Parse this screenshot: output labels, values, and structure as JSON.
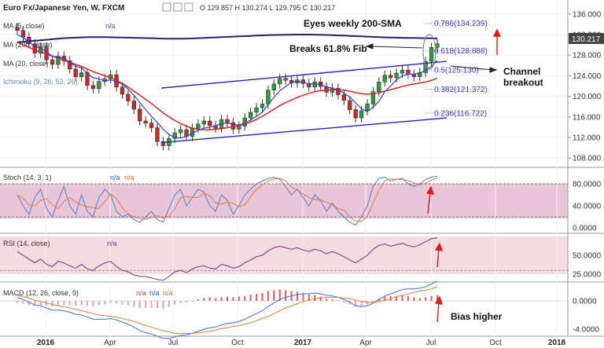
{
  "header": {
    "symbol": "Euro Fx/Japanese Yen, W, FXCM",
    "ohlc": "O 129.857  H 130.274  L 129.795  C 130.217"
  },
  "indicators": {
    "ma5": "MA (5, close)",
    "ma200": "MA (200, close)",
    "ma20": "MA (20, close)",
    "ichimoku": "Ichimoku (9, 26, 52, 26)",
    "na": "n/a"
  },
  "annotations": {
    "sma": "Eyes weekly 200-SMA",
    "fib": "Breaks 61.8% Fib",
    "channel1": "Channel",
    "channel2": "breakout",
    "bias": "Bias higher"
  },
  "price_tag": "130.217",
  "fib_levels": [
    {
      "label": "0.786(134.239)",
      "value": 134.239
    },
    {
      "label": "0.618(128.888)",
      "value": 128.888
    },
    {
      "label": "0.5(125.130)",
      "value": 125.13
    },
    {
      "label": "0.382(121.372)",
      "value": 121.372
    },
    {
      "label": "0.236(116.722)",
      "value": 116.722
    }
  ],
  "panes": {
    "stoch": {
      "title": "Stoch (14, 3, 1)",
      "na": "n/a",
      "na2": "n/a",
      "ticks": [
        "80.0000",
        "40.0000",
        "0.0000"
      ]
    },
    "rsi": {
      "title": "RSI (14, close)",
      "na": "n/a",
      "ticks": [
        "50.0000",
        "25.0000"
      ]
    },
    "macd": {
      "title": "MACD (12, 26, close, 9)",
      "na": "n/a",
      "na2": "n/a",
      "na3": "n/a",
      "ticks": [
        "0.0000",
        "-4.0000"
      ]
    }
  },
  "chart_data": {
    "type": "line",
    "title": "Euro Fx/Japanese Yen, W, FXCM",
    "ylim": [
      106.5,
      137.5
    ],
    "y_ticks": [
      "136.000",
      "132.000",
      "128.000",
      "124.000",
      "120.000",
      "116.000",
      "112.000",
      "108.000"
    ],
    "x_ticks": [
      "2016",
      "Apr",
      "Jul",
      "Oct",
      "2017",
      "Apr",
      "Jul",
      "Oct",
      "2018"
    ],
    "price_close": [
      132.8,
      131.5,
      130.2,
      128.4,
      129.6,
      127.1,
      126.2,
      127.8,
      126.9,
      125.3,
      123.8,
      124.6,
      122.1,
      121.5,
      122.9,
      123.4,
      124.2,
      121.8,
      120.4,
      119.1,
      117.5,
      115.2,
      114.8,
      113.9,
      111.2,
      110.4,
      111.8,
      112.9,
      113.5,
      112.2,
      113.8,
      114.6,
      115.2,
      114.3,
      113.8,
      115.5,
      114.9,
      113.6,
      114.2,
      115.8,
      116.9,
      117.8,
      118.5,
      121.2,
      122.4,
      123.5,
      123.1,
      122.6,
      123.2,
      122.5,
      121.8,
      122.8,
      121.9,
      120.8,
      121.6,
      120.3,
      119.2,
      117.4,
      115.8,
      117.2,
      118.5,
      120.9,
      122.8,
      124.1,
      123.6,
      124.5,
      125.1,
      124.3,
      123.8,
      124.6,
      126.8,
      129.5,
      130.217
    ],
    "ma200": [
      130.5,
      130.6,
      130.7,
      130.8,
      130.9,
      131.0,
      131.1,
      131.2,
      131.3,
      131.35,
      131.4,
      131.45,
      131.5,
      131.5,
      131.5,
      131.5,
      131.48,
      131.45,
      131.42,
      131.4,
      131.38,
      131.35,
      131.32,
      131.3,
      131.25,
      131.2,
      131.2,
      131.2,
      131.2,
      131.22,
      131.25,
      131.3,
      131.35,
      131.4,
      131.45,
      131.5,
      131.55,
      131.6,
      131.65,
      131.7,
      131.75,
      131.8,
      131.85,
      131.9,
      131.92,
      131.94,
      131.96,
      131.98,
      132.0,
      132.0,
      132.0,
      131.98,
      131.95,
      131.92,
      131.88,
      131.84,
      131.8,
      131.75,
      131.7,
      131.65,
      131.6,
      131.55,
      131.5,
      131.45,
      131.42,
      131.4,
      131.38,
      131.36,
      131.34,
      131.32,
      131.3,
      131.28,
      131.26
    ],
    "ma20": [
      130.5,
      130.0,
      129.5,
      129.0,
      128.6,
      128.2,
      127.8,
      127.4,
      127.0,
      126.6,
      126.2,
      125.8,
      125.3,
      124.8,
      124.4,
      124.0,
      123.6,
      123.1,
      122.5,
      121.8,
      121.0,
      120.2,
      119.4,
      118.6,
      117.7,
      116.8,
      116.0,
      115.3,
      114.7,
      114.2,
      113.8,
      113.6,
      113.5,
      113.5,
      113.6,
      113.7,
      113.9,
      114.1,
      114.3,
      114.6,
      115.0,
      115.5,
      116.1,
      116.8,
      117.5,
      118.2,
      118.8,
      119.3,
      119.8,
      120.2,
      120.6,
      120.9,
      121.1,
      121.2,
      121.3,
      121.3,
      121.2,
      121.0,
      120.7,
      120.5,
      120.4,
      120.5,
      120.7,
      121.0,
      121.3,
      121.6,
      121.9,
      122.2,
      122.4,
      122.6,
      122.8,
      123.1,
      123.5
    ],
    "ma5": [
      132.0,
      131.4,
      130.6,
      129.6,
      129.4,
      128.6,
      127.8,
      127.6,
      127.4,
      126.6,
      125.8,
      125.6,
      124.4,
      123.6,
      123.4,
      123.0,
      123.2,
      122.8,
      122.4,
      121.4,
      120.2,
      118.8,
      117.4,
      116.1,
      114.9,
      113.6,
      112.6,
      112.0,
      111.9,
      112.2,
      112.8,
      113.4,
      113.8,
      114.0,
      114.3,
      114.7,
      114.8,
      114.6,
      114.4,
      114.8,
      115.4,
      116.1,
      116.9,
      118.4,
      119.8,
      121.1,
      121.9,
      122.7,
      122.9,
      122.7,
      122.4,
      122.4,
      122.3,
      121.8,
      121.6,
      121.2,
      120.6,
      119.9,
      118.7,
      117.6,
      117.0,
      117.9,
      119.0,
      120.9,
      122.0,
      123.2,
      124.0,
      124.3,
      124.3,
      124.5,
      125.1,
      125.8,
      127.0
    ],
    "channel": {
      "upper": [
        [
          0.0,
          121.6
        ],
        [
          1.0,
          126.8
        ]
      ],
      "lower": [
        [
          0.0,
          111.0
        ],
        [
          1.0,
          115.8
        ]
      ]
    },
    "stoch_k": [
      60,
      40,
      25,
      55,
      70,
      35,
      20,
      50,
      75,
      40,
      25,
      60,
      30,
      20,
      55,
      70,
      60,
      30,
      20,
      25,
      15,
      10,
      20,
      30,
      15,
      10,
      35,
      60,
      70,
      40,
      55,
      70,
      65,
      40,
      30,
      60,
      50,
      25,
      40,
      60,
      70,
      80,
      85,
      90,
      92,
      88,
      75,
      60,
      70,
      55,
      40,
      60,
      50,
      30,
      45,
      30,
      20,
      10,
      5,
      20,
      40,
      75,
      90,
      92,
      85,
      88,
      90,
      80,
      75,
      80,
      88,
      92,
      94
    ],
    "rsi": [
      55,
      50,
      45,
      40,
      45,
      38,
      35,
      42,
      40,
      36,
      33,
      38,
      32,
      30,
      36,
      40,
      42,
      35,
      30,
      28,
      24,
      22,
      22,
      20,
      18,
      17,
      22,
      28,
      30,
      27,
      32,
      35,
      36,
      33,
      32,
      38,
      36,
      33,
      35,
      40,
      44,
      48,
      50,
      56,
      60,
      62,
      60,
      58,
      60,
      57,
      55,
      58,
      56,
      52,
      55,
      52,
      48,
      44,
      40,
      45,
      50,
      58,
      63,
      65,
      62,
      64,
      66,
      63,
      61,
      64,
      68,
      72,
      73
    ],
    "macd": [
      0.5,
      0.2,
      -0.2,
      -0.6,
      -0.7,
      -1.0,
      -1.3,
      -1.3,
      -1.4,
      -1.6,
      -1.9,
      -2.0,
      -2.3,
      -2.6,
      -2.6,
      -2.6,
      -2.5,
      -2.7,
      -3.0,
      -3.3,
      -3.7,
      -4.2,
      -4.5,
      -4.7,
      -5.0,
      -5.3,
      -5.3,
      -5.1,
      -4.9,
      -4.8,
      -4.6,
      -4.3,
      -4.0,
      -3.8,
      -3.7,
      -3.4,
      -3.2,
      -3.1,
      -2.9,
      -2.6,
      -2.2,
      -1.8,
      -1.4,
      -0.8,
      -0.3,
      0.2,
      0.5,
      0.7,
      0.9,
      1.0,
      1.0,
      1.1,
      1.0,
      0.8,
      0.7,
      0.5,
      0.2,
      -0.2,
      -0.7,
      -0.8,
      -0.7,
      -0.3,
      0.2,
      0.7,
      1.0,
      1.3,
      1.6,
      1.7,
      1.7,
      1.8,
      2.0,
      2.4,
      2.8
    ],
    "macd_signal": [
      0.8,
      0.6,
      0.4,
      0.1,
      -0.1,
      -0.3,
      -0.5,
      -0.7,
      -0.8,
      -1.0,
      -1.2,
      -1.4,
      -1.6,
      -1.8,
      -2.0,
      -2.1,
      -2.2,
      -2.3,
      -2.5,
      -2.7,
      -2.9,
      -3.2,
      -3.5,
      -3.7,
      -4.0,
      -4.2,
      -4.4,
      -4.6,
      -4.6,
      -4.6,
      -4.6,
      -4.5,
      -4.4,
      -4.3,
      -4.1,
      -3.9,
      -3.8,
      -3.6,
      -3.5,
      -3.3,
      -3.1,
      -2.8,
      -2.5,
      -2.2,
      -1.8,
      -1.4,
      -1.0,
      -0.7,
      -0.4,
      -0.1,
      0.1,
      0.3,
      0.4,
      0.5,
      0.5,
      0.5,
      0.4,
      0.3,
      0.1,
      -0.1,
      -0.2,
      -0.2,
      -0.1,
      0.1,
      0.3,
      0.6,
      0.8,
      1.0,
      1.2,
      1.4,
      1.5,
      1.7,
      2.0
    ]
  }
}
